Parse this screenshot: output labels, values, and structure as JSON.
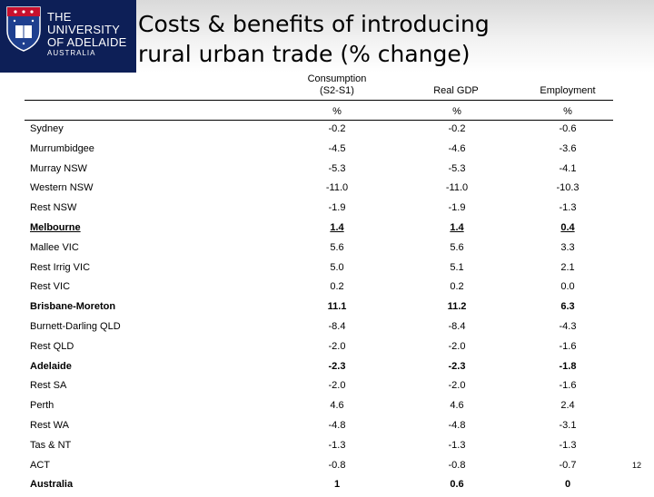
{
  "header": {
    "logo": {
      "line1": "THE UNIVERSITY",
      "line2": "OF ADELAIDE",
      "line3": "AUSTRALIA"
    },
    "title_line1": "Costs & benefits of introducing",
    "title_line2": "rural urban trade (% change)"
  },
  "table": {
    "columns": [
      {
        "label_line1": "Consumption",
        "label_line2": "(S2-S1)",
        "unit": "%"
      },
      {
        "label_line1": "Real GDP",
        "label_line2": "",
        "unit": "%"
      },
      {
        "label_line1": "Employment",
        "label_line2": "",
        "unit": "%"
      }
    ],
    "rows": [
      {
        "label": "Sydney",
        "values": [
          "-0.2",
          "-0.2",
          "-0.6"
        ],
        "style": "normal"
      },
      {
        "label": "Murrumbidgee",
        "values": [
          "-4.5",
          "-4.6",
          "-3.6"
        ],
        "style": "normal"
      },
      {
        "label": "Murray NSW",
        "values": [
          "-5.3",
          "-5.3",
          "-4.1"
        ],
        "style": "normal"
      },
      {
        "label": "Western NSW",
        "values": [
          "-11.0",
          "-11.0",
          "-10.3"
        ],
        "style": "normal"
      },
      {
        "label": "Rest NSW",
        "values": [
          "-1.9",
          "-1.9",
          "-1.3"
        ],
        "style": "normal"
      },
      {
        "label": "Melbourne",
        "values": [
          "1.4",
          "1.4",
          "0.4"
        ],
        "style": "bold-underline"
      },
      {
        "label": "Mallee VIC",
        "values": [
          "5.6",
          "5.6",
          "3.3"
        ],
        "style": "normal"
      },
      {
        "label": "Rest Irrig VIC",
        "values": [
          "5.0",
          "5.1",
          "2.1"
        ],
        "style": "normal"
      },
      {
        "label": "Rest VIC",
        "values": [
          "0.2",
          "0.2",
          "0.0"
        ],
        "style": "normal"
      },
      {
        "label": "Brisbane-Moreton",
        "values": [
          "11.1",
          "11.2",
          "6.3"
        ],
        "style": "bold"
      },
      {
        "label": "Burnett-Darling QLD",
        "values": [
          "-8.4",
          "-8.4",
          "-4.3"
        ],
        "style": "normal"
      },
      {
        "label": "Rest QLD",
        "values": [
          "-2.0",
          "-2.0",
          "-1.6"
        ],
        "style": "normal"
      },
      {
        "label": "Adelaide",
        "values": [
          "-2.3",
          "-2.3",
          "-1.8"
        ],
        "style": "bold"
      },
      {
        "label": "Rest SA",
        "values": [
          "-2.0",
          "-2.0",
          "-1.6"
        ],
        "style": "normal"
      },
      {
        "label": "Perth",
        "values": [
          "4.6",
          "4.6",
          "2.4"
        ],
        "style": "normal"
      },
      {
        "label": "Rest WA",
        "values": [
          "-4.8",
          "-4.8",
          "-3.1"
        ],
        "style": "normal"
      },
      {
        "label": "Tas & NT",
        "values": [
          "-1.3",
          "-1.3",
          "-1.3"
        ],
        "style": "normal"
      },
      {
        "label": "ACT",
        "values": [
          "-0.8",
          "-0.8",
          "-0.7"
        ],
        "style": "normal"
      },
      {
        "label": "Australia",
        "values": [
          "1",
          "0.6",
          "0"
        ],
        "style": "bold"
      }
    ]
  },
  "page_number": "12"
}
